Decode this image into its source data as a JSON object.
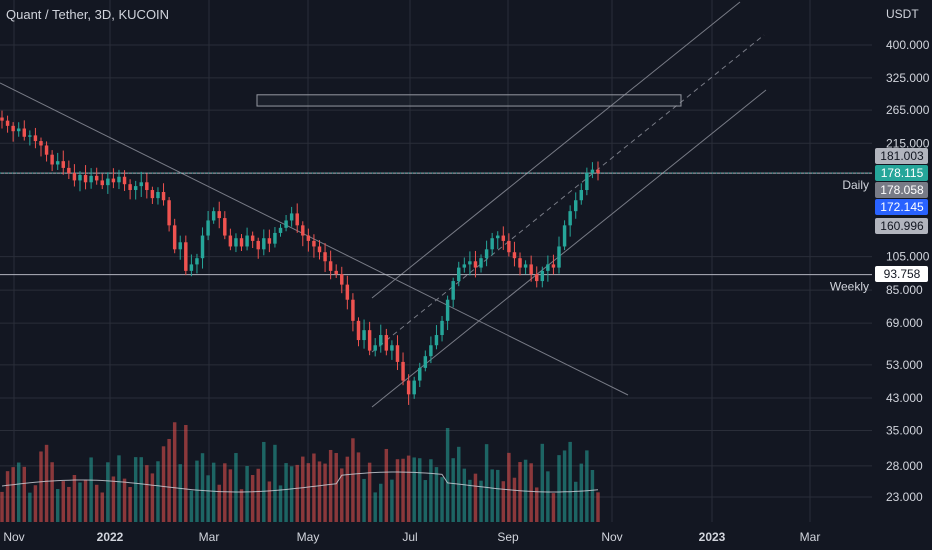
{
  "header": {
    "title": "Quant / Tether, 3D, KUCOIN"
  },
  "chart_data": {
    "type": "candlestick",
    "title": "Quant / Tether, 3D, KUCOIN",
    "y_axis_unit": "USDT",
    "y_scale": "log",
    "y_ticks": [
      "400.000",
      "325.000",
      "265.000",
      "215.000",
      "105.000",
      "85.000",
      "69.000",
      "53.000",
      "43.000",
      "35.000",
      "28.000",
      "23.000"
    ],
    "x_ticks": [
      "Nov",
      "2022",
      "Mar",
      "May",
      "Jul",
      "Sep",
      "Nov",
      "2023",
      "Mar"
    ],
    "price_tags": [
      {
        "label": "181.003",
        "bg": "#b2b5be",
        "fg": "#131722"
      },
      {
        "label": "178.115",
        "bg": "#26a69a",
        "fg": "#ffffff"
      },
      {
        "label": "178.058",
        "bg": "#787b86",
        "fg": "#ffffff"
      },
      {
        "label": "172.145",
        "bg": "#2962ff",
        "fg": "#ffffff"
      },
      {
        "label": "160.996",
        "bg": "#b2b5be",
        "fg": "#131722"
      },
      {
        "label": "93.758",
        "bg": "#ffffff",
        "fg": "#131722"
      }
    ],
    "horizontal_levels": [
      {
        "label": "Daily",
        "value": 178.058
      },
      {
        "label": "Weekly",
        "value": 93.758
      }
    ],
    "resistance_zone": [
      272,
      292
    ],
    "closes": [
      248,
      240,
      232,
      236,
      224,
      226,
      218,
      212,
      200,
      188,
      192,
      184,
      178,
      170,
      176,
      168,
      175,
      170,
      165,
      172,
      168,
      174,
      166,
      160,
      164,
      168,
      160,
      152,
      158,
      150,
      128,
      110,
      115,
      96,
      100,
      104,
      120,
      132,
      140,
      134,
      120,
      112,
      118,
      112,
      120,
      116,
      110,
      118,
      114,
      122,
      126,
      132,
      138,
      128,
      120,
      116,
      112,
      108,
      102,
      96,
      94,
      88,
      80,
      70,
      62,
      66,
      58,
      60,
      64,
      58,
      60,
      54,
      48,
      44,
      48,
      52,
      56,
      60,
      64,
      70,
      80,
      90,
      98,
      100,
      102,
      98,
      104,
      110,
      118,
      120,
      116,
      108,
      104,
      98,
      100,
      94,
      90,
      96,
      100,
      98,
      112,
      128,
      140,
      150,
      160,
      178,
      182,
      178
    ],
    "colors": {
      "up": "#26a69a",
      "down": "#ef5350",
      "background": "#131722",
      "grid": "#2a2e39",
      "text": "#d1d4dc"
    }
  }
}
